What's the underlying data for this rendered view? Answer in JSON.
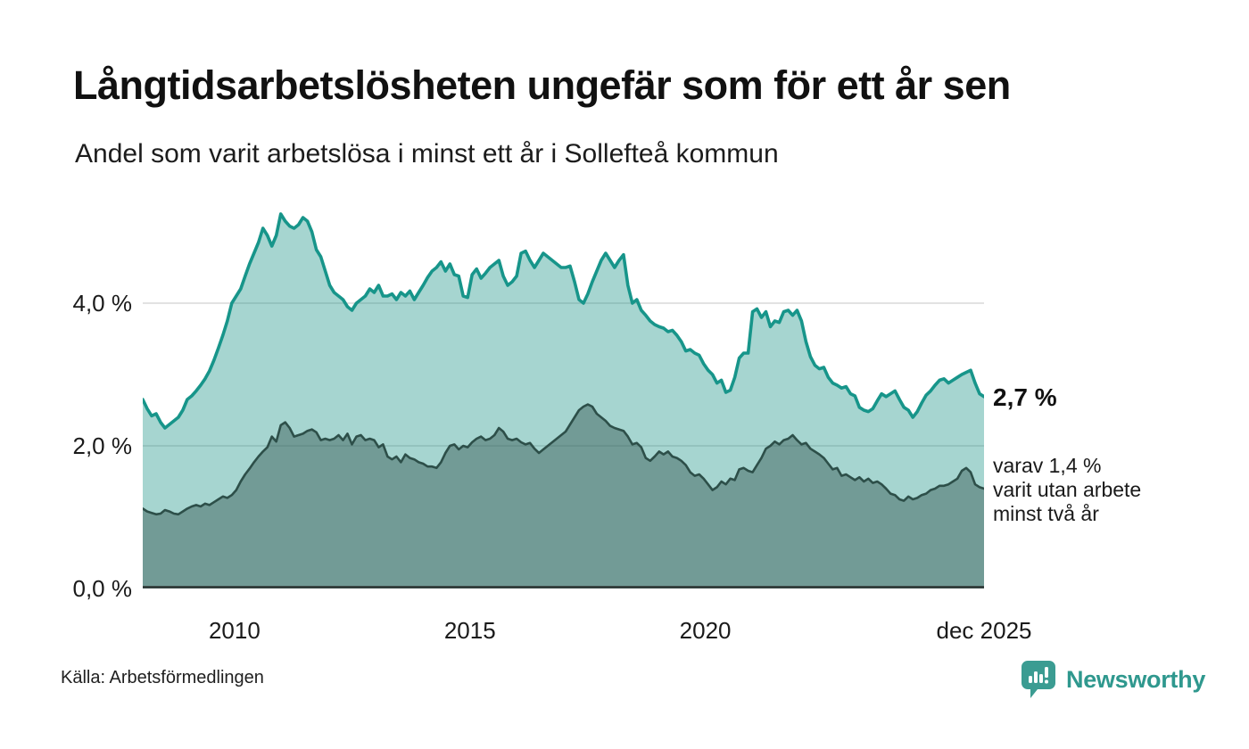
{
  "header": {
    "title": "Långtidsarbetslösheten ungefär som för ett år sen",
    "subtitle": "Andel som varit arbetslösa i minst ett år i Sollefteå kommun"
  },
  "annotations": {
    "latest_value": "2,7 %",
    "secondary_note": "varav 1,4 %\nvarit utan arbete\nminst två år"
  },
  "footer": {
    "source": "Källa: Arbetsförmedlingen",
    "brand": "Newsworthy",
    "brand_icon": "speech-bubble-bar-chart-icon"
  },
  "colors": {
    "background": "#ffffff",
    "title_text": "#111111",
    "body_text": "#1a1a1a",
    "gridline": "#d9d9d9",
    "axis_line": "#2b3331",
    "series1_line": "#17958a",
    "series1_fill": "rgba(20,144,132,0.38)",
    "series2_line": "#2d4f49",
    "series2_fill": "rgba(42,76,70,0.42)",
    "brand_teal": "#2f988e"
  },
  "chart_data": {
    "type": "area",
    "title": "Långtidsarbetslösheten ungefär som för ett år sen",
    "subtitle": "Andel som varit arbetslösa i minst ett år i Sollefteå kommun",
    "unit": "%",
    "grid": true,
    "x_start": 2008.05,
    "x_end": 2025.92,
    "ylim": [
      0,
      5.35
    ],
    "yticks": [
      {
        "value": 0.0,
        "label": "0,0 %"
      },
      {
        "value": 2.0,
        "label": "2,0 %"
      },
      {
        "value": 4.0,
        "label": "4,0 %"
      }
    ],
    "xticks": [
      {
        "year": 2010.0,
        "label": "2010"
      },
      {
        "year": 2015.0,
        "label": "2015"
      },
      {
        "year": 2020.0,
        "label": "2020"
      },
      {
        "year": 2025.92,
        "label": "dec 2025"
      }
    ],
    "series": [
      {
        "name": "Andel som varit arbetslösa i minst ett år",
        "latest_value": 2.7,
        "line_color": "#17958a",
        "fill_color": "rgba(20,144,132,0.38)",
        "values": [
          2.65,
          2.52,
          2.42,
          2.45,
          2.33,
          2.25,
          2.3,
          2.35,
          2.4,
          2.5,
          2.65,
          2.7,
          2.77,
          2.85,
          2.94,
          3.05,
          3.2,
          3.37,
          3.55,
          3.75,
          4.0,
          4.1,
          4.2,
          4.38,
          4.55,
          4.7,
          4.85,
          5.05,
          4.95,
          4.8,
          4.95,
          5.25,
          5.15,
          5.08,
          5.05,
          5.1,
          5.2,
          5.15,
          5.0,
          4.75,
          4.65,
          4.45,
          4.25,
          4.15,
          4.1,
          4.05,
          3.95,
          3.9,
          4.0,
          4.05,
          4.1,
          4.2,
          4.15,
          4.25,
          4.1,
          4.1,
          4.13,
          4.05,
          4.15,
          4.1,
          4.17,
          4.05,
          4.15,
          4.25,
          4.36,
          4.45,
          4.5,
          4.58,
          4.45,
          4.55,
          4.4,
          4.38,
          4.1,
          4.08,
          4.4,
          4.48,
          4.35,
          4.42,
          4.5,
          4.55,
          4.6,
          4.38,
          4.25,
          4.3,
          4.38,
          4.7,
          4.73,
          4.6,
          4.5,
          4.6,
          4.7,
          4.65,
          4.6,
          4.55,
          4.5,
          4.5,
          4.52,
          4.3,
          4.05,
          4.0,
          4.13,
          4.3,
          4.45,
          4.6,
          4.7,
          4.6,
          4.5,
          4.6,
          4.68,
          4.25,
          4.0,
          4.05,
          3.9,
          3.83,
          3.75,
          3.7,
          3.67,
          3.65,
          3.6,
          3.62,
          3.55,
          3.46,
          3.33,
          3.35,
          3.3,
          3.27,
          3.15,
          3.06,
          3.0,
          2.88,
          2.92,
          2.75,
          2.78,
          2.96,
          3.23,
          3.3,
          3.3,
          3.88,
          3.92,
          3.8,
          3.88,
          3.67,
          3.75,
          3.73,
          3.88,
          3.9,
          3.83,
          3.9,
          3.75,
          3.46,
          3.25,
          3.13,
          3.08,
          3.1,
          2.96,
          2.88,
          2.85,
          2.81,
          2.83,
          2.73,
          2.7,
          2.54,
          2.5,
          2.48,
          2.52,
          2.63,
          2.73,
          2.69,
          2.73,
          2.77,
          2.65,
          2.54,
          2.5,
          2.4,
          2.48,
          2.6,
          2.71,
          2.77,
          2.85,
          2.92,
          2.94,
          2.88,
          2.92,
          2.96,
          3.0,
          3.03,
          3.06,
          2.88,
          2.73,
          2.69
        ]
      },
      {
        "name": "varav varit utan arbete minst två år",
        "latest_value": 1.4,
        "line_color": "#2d4f49",
        "fill_color": "rgba(42,76,70,0.42)",
        "values": [
          1.12,
          1.08,
          1.06,
          1.04,
          1.05,
          1.1,
          1.08,
          1.05,
          1.04,
          1.08,
          1.12,
          1.15,
          1.17,
          1.15,
          1.19,
          1.17,
          1.21,
          1.25,
          1.29,
          1.27,
          1.31,
          1.38,
          1.5,
          1.6,
          1.68,
          1.77,
          1.85,
          1.92,
          1.98,
          2.13,
          2.06,
          2.29,
          2.33,
          2.25,
          2.13,
          2.15,
          2.17,
          2.21,
          2.23,
          2.19,
          2.08,
          2.1,
          2.08,
          2.1,
          2.15,
          2.08,
          2.17,
          2.02,
          2.13,
          2.15,
          2.08,
          2.1,
          2.08,
          1.98,
          2.02,
          1.85,
          1.81,
          1.85,
          1.77,
          1.88,
          1.83,
          1.81,
          1.77,
          1.75,
          1.71,
          1.71,
          1.69,
          1.77,
          1.9,
          2.0,
          2.02,
          1.95,
          2.0,
          1.98,
          2.05,
          2.1,
          2.13,
          2.08,
          2.1,
          2.15,
          2.25,
          2.2,
          2.1,
          2.08,
          2.1,
          2.05,
          2.02,
          2.04,
          1.96,
          1.9,
          1.95,
          2.0,
          2.05,
          2.1,
          2.15,
          2.2,
          2.3,
          2.4,
          2.5,
          2.55,
          2.58,
          2.55,
          2.45,
          2.4,
          2.35,
          2.28,
          2.25,
          2.23,
          2.21,
          2.13,
          2.02,
          2.04,
          1.98,
          1.83,
          1.79,
          1.85,
          1.92,
          1.88,
          1.92,
          1.85,
          1.83,
          1.79,
          1.73,
          1.63,
          1.58,
          1.6,
          1.54,
          1.46,
          1.38,
          1.42,
          1.5,
          1.46,
          1.54,
          1.52,
          1.67,
          1.69,
          1.65,
          1.63,
          1.73,
          1.83,
          1.96,
          2.0,
          2.06,
          2.02,
          2.08,
          2.1,
          2.15,
          2.08,
          2.02,
          2.04,
          1.96,
          1.92,
          1.88,
          1.83,
          1.75,
          1.67,
          1.69,
          1.58,
          1.6,
          1.56,
          1.52,
          1.56,
          1.5,
          1.54,
          1.48,
          1.5,
          1.46,
          1.4,
          1.33,
          1.31,
          1.25,
          1.23,
          1.29,
          1.25,
          1.27,
          1.31,
          1.33,
          1.38,
          1.4,
          1.44,
          1.44,
          1.46,
          1.5,
          1.54,
          1.65,
          1.69,
          1.63,
          1.46,
          1.42,
          1.4
        ]
      }
    ]
  }
}
